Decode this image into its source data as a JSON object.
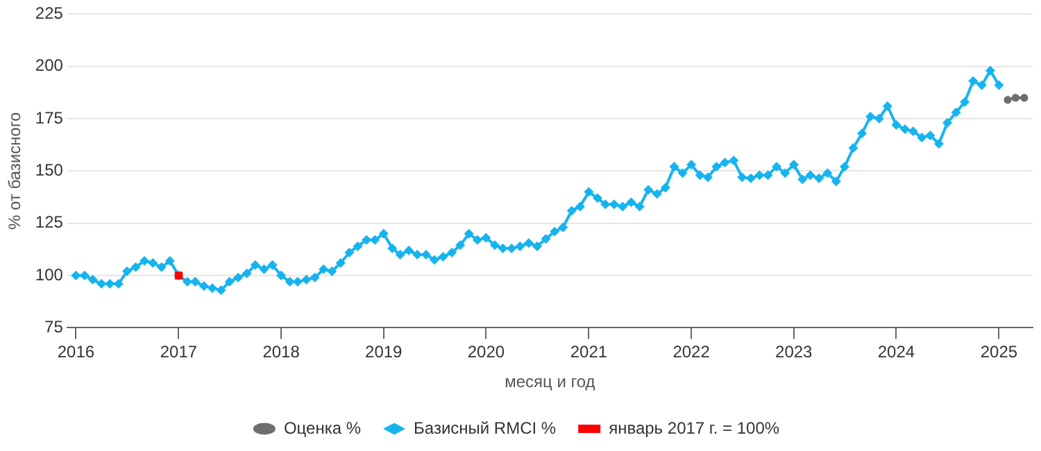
{
  "chart_data": {
    "type": "line",
    "xlabel": "месяц и год",
    "ylabel": "% от базисного",
    "xlim": [
      "2015-12",
      "2025-05"
    ],
    "xticks": [
      "2016",
      "2017",
      "2018",
      "2019",
      "2020",
      "2021",
      "2022",
      "2023",
      "2024",
      "2025"
    ],
    "ylim": [
      75,
      225
    ],
    "yticks": [
      75,
      100,
      125,
      150,
      175,
      200,
      225
    ],
    "grid": "y",
    "legend": "bottom",
    "series": [
      {
        "name": "Оценка %",
        "color": "#6e6e6e",
        "marker": "circle",
        "x": [
          "2025-02",
          "2025-03",
          "2025-04"
        ],
        "values": [
          184,
          185,
          185
        ]
      },
      {
        "name": "Базисный RMCI %",
        "color": "#16b4ee",
        "marker": "diamond",
        "x": [
          "2016-01",
          "2016-02",
          "2016-03",
          "2016-04",
          "2016-05",
          "2016-06",
          "2016-07",
          "2016-08",
          "2016-09",
          "2016-10",
          "2016-11",
          "2016-12",
          "2017-01",
          "2017-02",
          "2017-03",
          "2017-04",
          "2017-05",
          "2017-06",
          "2017-07",
          "2017-08",
          "2017-09",
          "2017-10",
          "2017-11",
          "2017-12",
          "2018-01",
          "2018-02",
          "2018-03",
          "2018-04",
          "2018-05",
          "2018-06",
          "2018-07",
          "2018-08",
          "2018-09",
          "2018-10",
          "2018-11",
          "2018-12",
          "2019-01",
          "2019-02",
          "2019-03",
          "2019-04",
          "2019-05",
          "2019-06",
          "2019-07",
          "2019-08",
          "2019-09",
          "2019-10",
          "2019-11",
          "2019-12",
          "2020-01",
          "2020-02",
          "2020-03",
          "2020-04",
          "2020-05",
          "2020-06",
          "2020-07",
          "2020-08",
          "2020-09",
          "2020-10",
          "2020-11",
          "2020-12",
          "2021-01",
          "2021-02",
          "2021-03",
          "2021-04",
          "2021-05",
          "2021-06",
          "2021-07",
          "2021-08",
          "2021-09",
          "2021-10",
          "2021-11",
          "2021-12",
          "2022-01",
          "2022-02",
          "2022-03",
          "2022-04",
          "2022-05",
          "2022-06",
          "2022-07",
          "2022-08",
          "2022-09",
          "2022-10",
          "2022-11",
          "2022-12",
          "2023-01",
          "2023-02",
          "2023-03",
          "2023-04",
          "2023-05",
          "2023-06",
          "2023-07",
          "2023-08",
          "2023-09",
          "2023-10",
          "2023-11",
          "2023-12",
          "2024-01",
          "2024-02",
          "2024-03",
          "2024-04",
          "2024-05",
          "2024-06",
          "2024-07",
          "2024-08",
          "2024-09",
          "2024-10",
          "2024-11",
          "2024-12",
          "2025-01"
        ],
        "values": [
          100,
          100,
          98,
          96,
          96,
          96,
          102,
          104,
          107,
          106,
          104,
          107,
          100,
          97,
          97,
          95,
          94,
          93,
          97,
          99,
          101,
          105,
          103,
          105,
          100,
          97,
          97,
          98,
          99,
          103,
          102,
          106,
          111,
          114,
          117,
          117,
          120,
          113,
          110,
          112,
          110,
          110,
          107.5,
          109,
          111,
          114.5,
          120,
          117,
          118,
          114.5,
          113,
          113,
          114,
          115.5,
          114,
          117.5,
          121,
          123,
          131,
          133,
          140,
          137,
          134,
          134,
          133,
          135,
          133,
          141,
          139,
          142,
          152,
          149,
          153,
          148,
          147,
          152,
          154,
          155,
          147,
          146.5,
          148,
          148,
          152,
          149,
          153,
          146,
          148,
          146.5,
          149,
          145,
          152,
          161,
          168,
          176,
          175,
          181,
          172,
          170,
          169,
          166,
          167,
          163,
          173,
          178,
          183,
          193,
          191,
          198,
          191
        ]
      },
      {
        "name": "январь 2017 г. = 100%",
        "color": "#ff0000",
        "marker": "square",
        "x": [
          "2017-01"
        ],
        "values": [
          100
        ]
      }
    ]
  }
}
